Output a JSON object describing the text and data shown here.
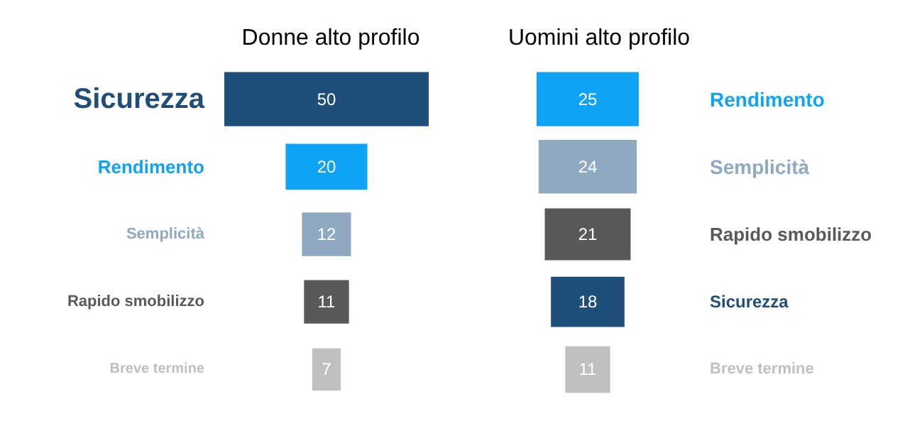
{
  "chart_data": [
    {
      "type": "other",
      "title": "Donne alto profilo",
      "categories": [
        "Sicurezza",
        "Rendimento",
        "Semplicità",
        "Rapido smobilizzo",
        "Breve termine"
      ],
      "values": [
        50,
        20,
        12,
        11,
        7
      ],
      "colors": [
        "#1f4e79",
        "#0fa3f5",
        "#8ea9c1",
        "#595959",
        "#bfbfbf"
      ],
      "data_labels": true
    },
    {
      "type": "other",
      "title": "Uomini alto profilo",
      "categories": [
        "Rendimento",
        "Semplicità",
        "Rapido smobilizzo",
        "Sicurezza",
        "Breve termine"
      ],
      "values": [
        25,
        24,
        21,
        18,
        11
      ],
      "colors": [
        "#0fa3f5",
        "#8ea9c1",
        "#595959",
        "#1f4e79",
        "#bfbfbf"
      ],
      "data_labels": true
    }
  ]
}
